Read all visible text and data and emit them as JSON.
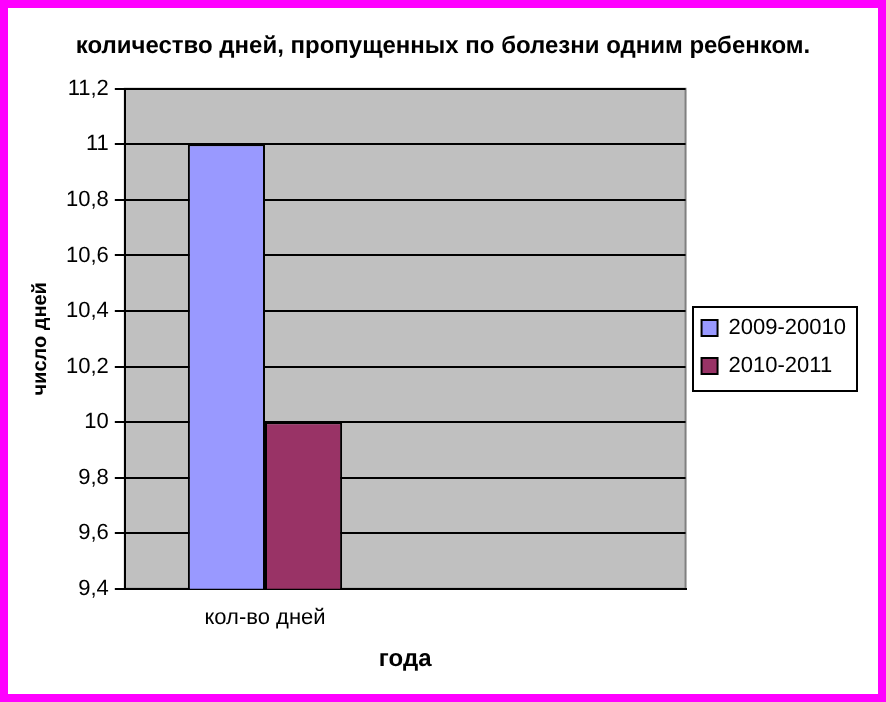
{
  "chart_data": {
    "type": "bar",
    "title": "количество дней, пропущенных по болезни одним ребенком.",
    "xlabel": "года",
    "ylabel": "число дней",
    "categories": [
      "кол-во дней",
      null
    ],
    "series": [
      {
        "name": "2009-20010",
        "color": "#9999ff",
        "values": [
          11,
          null
        ]
      },
      {
        "name": "2010-2011",
        "color": "#993366",
        "values": [
          10,
          null
        ]
      }
    ],
    "ylim": [
      9.4,
      11.2
    ],
    "yticks": [
      {
        "value": 9.4,
        "label": "9,4"
      },
      {
        "value": 9.6,
        "label": "9,6"
      },
      {
        "value": 9.8,
        "label": "9,8"
      },
      {
        "value": 10,
        "label": "10"
      },
      {
        "value": 10.2,
        "label": "10,2"
      },
      {
        "value": 10.4,
        "label": "10,4"
      },
      {
        "value": 10.6,
        "label": "10,6"
      },
      {
        "value": 10.8,
        "label": "10,8"
      },
      {
        "value": 11,
        "label": "11"
      },
      {
        "value": 11.2,
        "label": "11,2"
      }
    ],
    "grid": "y",
    "legend": "right"
  }
}
